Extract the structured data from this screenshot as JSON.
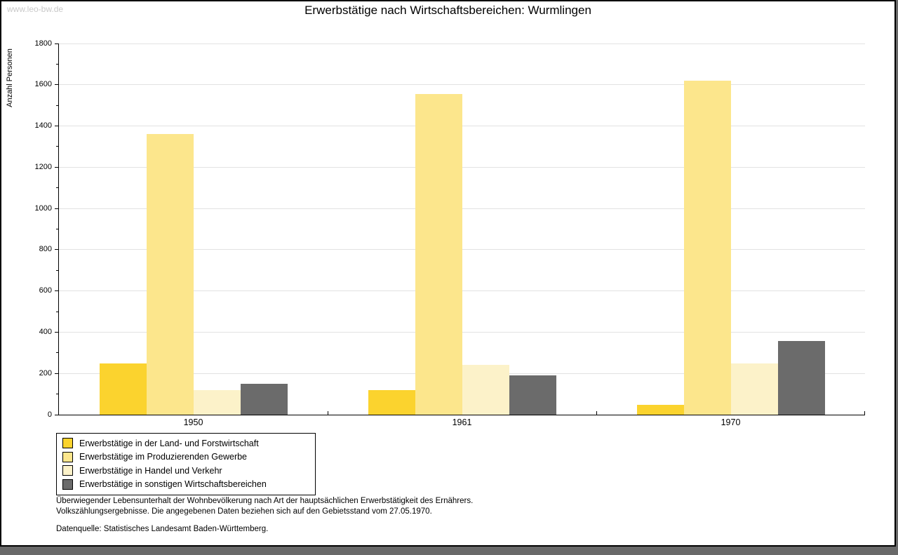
{
  "watermark": "www.leo-bw.de",
  "title": "Erwerbstätige nach Wirtschaftsbereichen: Wurmlingen",
  "chart_data": {
    "type": "bar",
    "title": "Erwerbstätige nach Wirtschaftsbereichen: Wurmlingen",
    "xlabel": "",
    "ylabel": "Anzahl Personen",
    "categories": [
      "1950",
      "1961",
      "1970"
    ],
    "series": [
      {
        "name": "Erwerbstätige in der Land- und Forstwirtschaft",
        "color": "#FBD32E",
        "values": [
          248,
          120,
          48
        ]
      },
      {
        "name": "Erwerbstätige im Produzierenden Gewerbe",
        "color": "#FCE68C",
        "values": [
          1360,
          1555,
          1620
        ]
      },
      {
        "name": "Erwerbstätige in Handel und Verkehr",
        "color": "#FCF2C9",
        "values": [
          120,
          240,
          250
        ]
      },
      {
        "name": "Erwerbstätige in sonstigen Wirtschaftsbereichen",
        "color": "#6B6B6B",
        "values": [
          150,
          192,
          357
        ]
      }
    ],
    "ylim": [
      0,
      1800
    ],
    "ytick_step": 200,
    "ytick_minor_step": 100,
    "grid": true,
    "gridline_color": "#e2e2e2",
    "legend_position": "bottom-left"
  },
  "footer": {
    "note_line1": "Überwiegender Lebensunterhalt der Wohnbevölkerung nach Art der hauptsächlichen Erwerbstätigkeit des Ernährers.",
    "note_line2": "Volkszählungsergebnisse. Die angegebenen Daten beziehen sich auf den Gebietsstand vom 27.05.1970.",
    "source": "Datenquelle: Statistisches Landesamt Baden-Württemberg."
  }
}
